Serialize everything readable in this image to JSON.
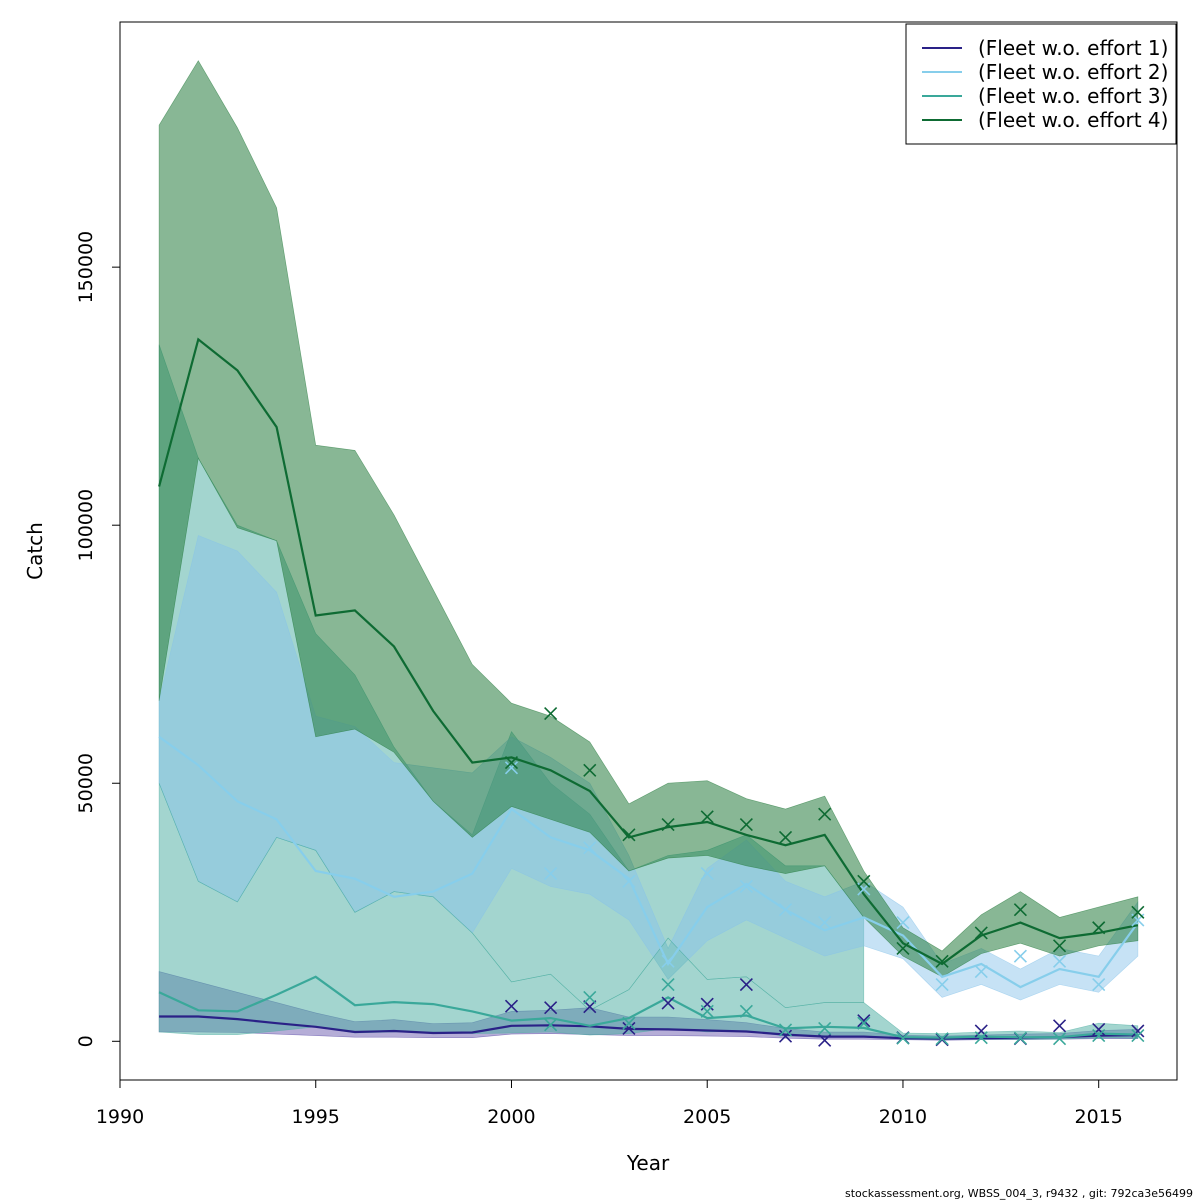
{
  "footer": "stockassessment.org, WBSS_004_3, r9432 , git: 792ca3e56499",
  "chart_data": {
    "type": "line",
    "xlabel": "Year",
    "ylabel": "Catch",
    "xlim": [
      1990,
      2017
    ],
    "ylim": [
      -7500,
      197500
    ],
    "x_ticks": [
      1990,
      1995,
      2000,
      2005,
      2010,
      2015
    ],
    "y_ticks": [
      0,
      50000,
      100000,
      150000
    ],
    "legend_position": "top-right",
    "years": [
      1991,
      1992,
      1993,
      1994,
      1995,
      1996,
      1997,
      1998,
      1999,
      2000,
      2001,
      2002,
      2003,
      2004,
      2005,
      2006,
      2007,
      2008,
      2009,
      2010,
      2011,
      2012,
      2013,
      2014,
      2015,
      2016
    ],
    "series": [
      {
        "name": "(Fleet w.o. effort 1)",
        "color": "#2a2187",
        "band_color": "#5a4aa6",
        "band_opacity": 0.45,
        "fit": [
          4800,
          4800,
          4300,
          3500,
          2800,
          1800,
          2000,
          1600,
          1700,
          3000,
          3100,
          2900,
          2400,
          2300,
          2100,
          1900,
          1300,
          900,
          900,
          600,
          500,
          600,
          700,
          800,
          1100,
          1200
        ],
        "upper": [
          13500,
          11500,
          9500,
          7500,
          5500,
          3800,
          4200,
          3400,
          3600,
          5800,
          6000,
          6500,
          4700,
          4700,
          4200,
          3600,
          2500,
          1800,
          1800,
          1200,
          1000,
          1200,
          1400,
          1500,
          2100,
          2300
        ],
        "lower": [
          1800,
          1800,
          1700,
          1400,
          1100,
          800,
          800,
          700,
          700,
          1400,
          1500,
          1300,
          1100,
          1100,
          1000,
          900,
          600,
          400,
          400,
          300,
          200,
          300,
          300,
          400,
          500,
          500
        ],
        "observed": [
          null,
          null,
          null,
          null,
          null,
          null,
          null,
          null,
          null,
          6800,
          6500,
          6700,
          2500,
          7400,
          7200,
          11000,
          1000,
          200,
          4000,
          700,
          300,
          2000,
          500,
          3000,
          2300,
          2000
        ]
      },
      {
        "name": "(Fleet w.o. effort 2)",
        "color": "#87ceeb",
        "band_color": "#87c3ea",
        "band_opacity": 0.48,
        "fit": [
          59000,
          53500,
          46500,
          43000,
          33000,
          31500,
          28000,
          29000,
          32500,
          45000,
          39500,
          37000,
          31500,
          15000,
          26000,
          30500,
          25500,
          21500,
          24000,
          20500,
          12500,
          15000,
          10500,
          14000,
          12500,
          23000
        ],
        "upper": [
          66000,
          98000,
          95000,
          87000,
          63000,
          61000,
          54000,
          53000,
          52000,
          59000,
          55000,
          50000,
          36000,
          18000,
          33500,
          39000,
          31000,
          28000,
          31000,
          26000,
          15000,
          18000,
          14000,
          18000,
          16500,
          27000
        ],
        "lower": [
          50000,
          31000,
          27000,
          39500,
          37000,
          25000,
          29000,
          28000,
          21000,
          33500,
          30000,
          28500,
          23500,
          12000,
          19500,
          23500,
          20000,
          16500,
          18500,
          16000,
          8500,
          11000,
          8000,
          11000,
          9500,
          16500
        ],
        "observed": [
          null,
          null,
          null,
          null,
          null,
          null,
          null,
          null,
          null,
          53000,
          32500,
          37500,
          31000,
          15500,
          32500,
          30000,
          25500,
          23000,
          29500,
          23000,
          11000,
          13500,
          16500,
          15500,
          11000,
          23500
        ]
      },
      {
        "name": "(Fleet w.o. effort 3)",
        "color": "#3aa89a",
        "band_color": "#48ab9f",
        "band_opacity": 0.5,
        "fit": [
          9500,
          6000,
          5800,
          9000,
          12500,
          7000,
          7600,
          7200,
          5800,
          4000,
          4500,
          3000,
          4500,
          8500,
          4500,
          5000,
          2500,
          2800,
          2600,
          800,
          700,
          900,
          800,
          800,
          1500,
          1300
        ],
        "upper": [
          50000,
          31000,
          27000,
          39500,
          37000,
          25000,
          29000,
          28000,
          21000,
          11500,
          13000,
          6000,
          10000,
          20000,
          12000,
          12500,
          6500,
          7500,
          7500,
          1600,
          1500,
          1800,
          2000,
          1700,
          3500,
          3000
        ],
        "lower": [
          1800,
          1300,
          1300,
          2000,
          2800,
          1600,
          1800,
          1800,
          1500,
          1600,
          1800,
          1200,
          1500,
          2500,
          1800,
          2000,
          1000,
          1000,
          1000,
          400,
          300,
          400,
          400,
          400,
          700,
          600
        ],
        "upper_outer": [
          135000,
          113000,
          100000,
          97000,
          79000,
          71000,
          57000,
          46500,
          40000,
          60000,
          50000,
          44000,
          33000,
          36000,
          37000,
          40000,
          34000,
          34000,
          24000,
          null,
          null,
          null,
          null,
          null,
          null,
          null
        ],
        "observed": [
          null,
          null,
          null,
          null,
          null,
          null,
          null,
          null,
          null,
          null,
          3200,
          8500,
          3500,
          11000,
          5800,
          5800,
          2200,
          2500,
          3500,
          600,
          500,
          700,
          600,
          500,
          1100,
          1100
        ]
      },
      {
        "name": "(Fleet w.o. effort 4)",
        "color": "#0e6b33",
        "band_color": "#237a3b",
        "band_opacity": 0.54,
        "fit": [
          107500,
          136000,
          130000,
          119000,
          82500,
          83500,
          76500,
          64000,
          54000,
          55000,
          52500,
          48500,
          39500,
          41500,
          42500,
          40000,
          38000,
          40000,
          28500,
          19000,
          15000,
          20500,
          23000,
          20000,
          21000,
          22500
        ],
        "upper": [
          177500,
          190000,
          177000,
          161500,
          115500,
          114500,
          102000,
          87500,
          73000,
          65500,
          63000,
          58000,
          46000,
          50000,
          50500,
          47000,
          45000,
          47500,
          33000,
          22000,
          17500,
          24500,
          29000,
          24000,
          26000,
          28000
        ],
        "lower": [
          66000,
          113000,
          99500,
          97000,
          59000,
          60500,
          56000,
          46500,
          39500,
          45500,
          43000,
          40500,
          33000,
          35500,
          36000,
          34000,
          32500,
          34000,
          24000,
          16500,
          12500,
          17000,
          19000,
          16500,
          18500,
          19500
        ],
        "observed": [
          null,
          null,
          null,
          null,
          null,
          null,
          null,
          null,
          null,
          54000,
          63500,
          52500,
          40000,
          42000,
          43500,
          42000,
          39500,
          44000,
          31000,
          18000,
          15500,
          21000,
          25500,
          18500,
          22000,
          25000
        ]
      }
    ]
  }
}
